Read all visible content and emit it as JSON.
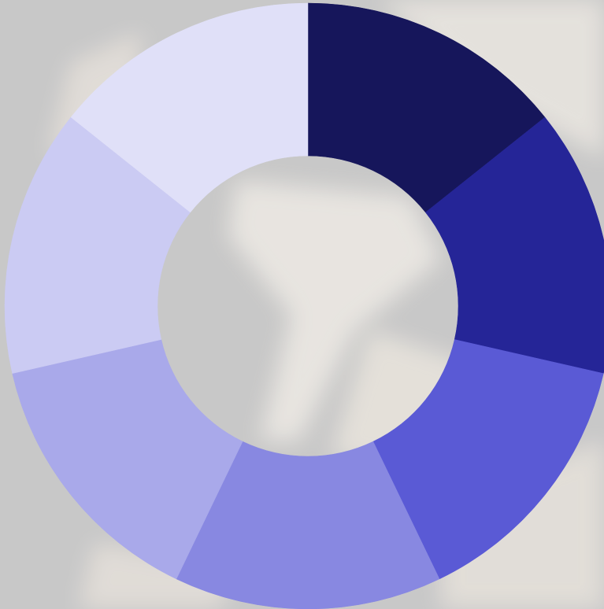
{
  "chart_data": {
    "type": "donut",
    "values": [
      1,
      1,
      1,
      1,
      1,
      1,
      1
    ],
    "colors": [
      "#16165b",
      "#252597",
      "#5a5ad5",
      "#8888e1",
      "#a9a9ea",
      "#cbcbf3",
      "#e0e0f8"
    ]
  }
}
